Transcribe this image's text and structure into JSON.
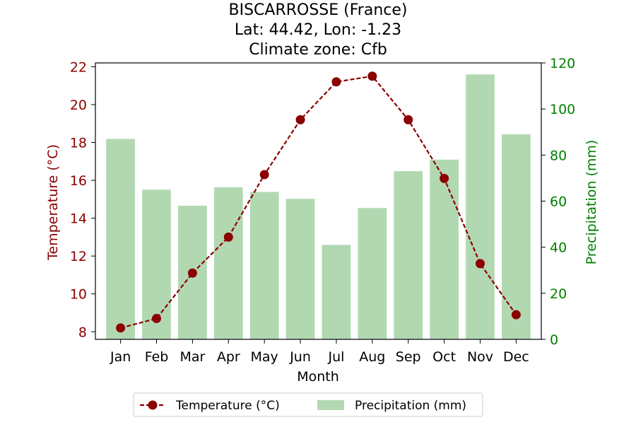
{
  "chart_data": {
    "type": "bar+line",
    "title_lines": [
      "BISCARROSSE (France)",
      "Lat: 44.42, Lon: -1.23",
      "Climate zone: Cfb"
    ],
    "categories": [
      "Jan",
      "Feb",
      "Mar",
      "Apr",
      "May",
      "Jun",
      "Jul",
      "Aug",
      "Sep",
      "Oct",
      "Nov",
      "Dec"
    ],
    "xlabel": "Month",
    "temperature": {
      "name": "Temperature (°C)",
      "axis_label": "Temperature (°C)",
      "values": [
        8.2,
        8.7,
        11.1,
        13.0,
        16.3,
        19.2,
        21.2,
        21.5,
        19.2,
        16.1,
        11.6,
        8.9
      ],
      "ylim": [
        7.6,
        22.2
      ],
      "ticks": [
        8,
        10,
        12,
        14,
        16,
        18,
        20,
        22
      ],
      "color": "#8b0000",
      "line_style": "dashed",
      "marker": "circle"
    },
    "precipitation": {
      "name": "Precipitation (mm)",
      "axis_label": "Precipitation (mm)",
      "values": [
        87,
        65,
        58,
        66,
        64,
        61,
        41,
        57,
        73,
        78,
        115,
        89
      ],
      "ylim": [
        0,
        120
      ],
      "ticks": [
        0,
        20,
        40,
        60,
        80,
        100,
        120
      ],
      "color": "#b2d8b2",
      "axis_color": "#008000"
    },
    "grid": false,
    "legend_position": "bottom-center"
  }
}
